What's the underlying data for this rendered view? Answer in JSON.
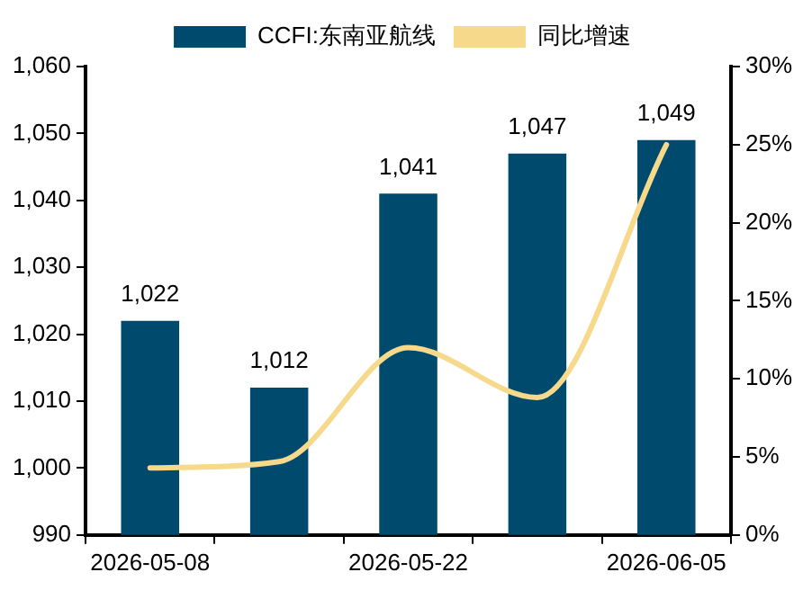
{
  "chart_data": {
    "type": "bar",
    "categories": [
      "2026-05-08",
      null,
      "2026-05-22",
      null,
      "2026-06-05"
    ],
    "series": [
      {
        "name": "CCFI:东南亚航线",
        "color": "#004a6e",
        "values": [
          1022,
          1012,
          1041,
          1047,
          1049
        ],
        "value_labels": [
          "1,022",
          "1,012",
          "1,041",
          "1,047",
          "1,049"
        ]
      },
      {
        "name": "同比增速",
        "type": "line",
        "axis": "y2",
        "color": "#f6d98a",
        "values": [
          4.3,
          4.7,
          12.0,
          8.8,
          25.0
        ]
      }
    ],
    "ylim": [
      990,
      1060
    ],
    "yticks": [
      {
        "value": 990,
        "label": "990"
      },
      {
        "value": 1000,
        "label": "1,000"
      },
      {
        "value": 1010,
        "label": "1,010"
      },
      {
        "value": 1020,
        "label": "1,020"
      },
      {
        "value": 1030,
        "label": "1,030"
      },
      {
        "value": 1040,
        "label": "1,040"
      },
      {
        "value": 1050,
        "label": "1,050"
      },
      {
        "value": 1060,
        "label": "1,060"
      }
    ],
    "y2lim": [
      0,
      30
    ],
    "y2ticks": [
      {
        "value": 0,
        "label": "0%"
      },
      {
        "value": 5,
        "label": "5%"
      },
      {
        "value": 10,
        "label": "10%"
      },
      {
        "value": 15,
        "label": "15%"
      },
      {
        "value": 20,
        "label": "20%"
      },
      {
        "value": 25,
        "label": "25%"
      },
      {
        "value": 30,
        "label": "30%"
      }
    ],
    "legend": "top",
    "grid": false,
    "marker": "none",
    "line_style": "solid"
  }
}
